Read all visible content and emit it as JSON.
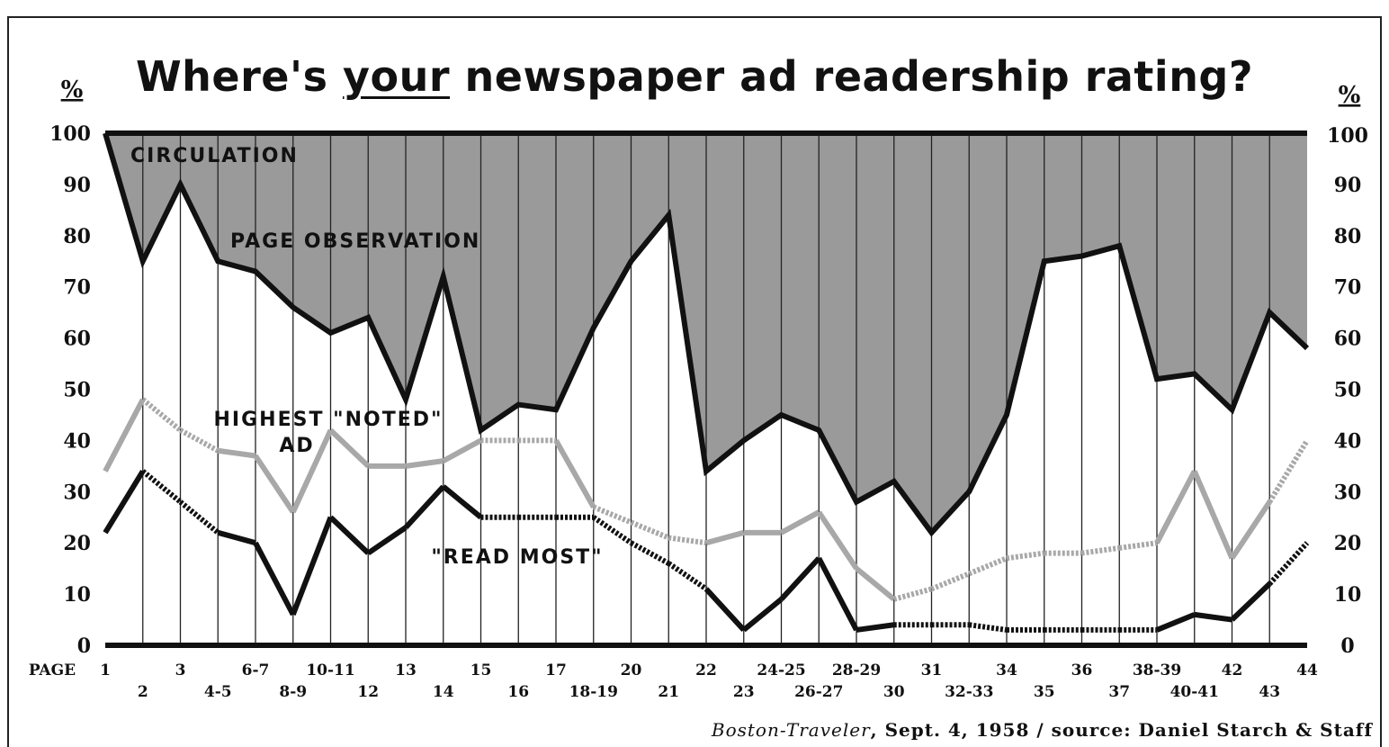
{
  "title": {
    "pre": "Where's ",
    "emph": "your",
    "post": " newspaper ad readership rating?"
  },
  "source": {
    "paper": "Boston-Traveler",
    "rest": ", Sept. 4, 1958 / source: Daniel Starch & Staff"
  },
  "chart_data": {
    "type": "line",
    "title": "Where's your newspaper ad readership rating?",
    "ylabel_left": "%",
    "ylabel_right": "%",
    "ylim": [
      0,
      100
    ],
    "yticks": [
      0,
      10,
      20,
      30,
      40,
      50,
      60,
      70,
      80,
      90,
      100
    ],
    "x_axis_label": "PAGE",
    "pages_top": [
      "1",
      "3",
      "6-7",
      "10-11",
      "13",
      "15",
      "17",
      "20",
      "22",
      "24-25",
      "28-29",
      "31",
      "34",
      "36",
      "38-39",
      "42",
      "44"
    ],
    "pages_bottom": [
      "2",
      "4-5",
      "8-9",
      "12",
      "14",
      "16",
      "18-19",
      "21",
      "23",
      "26-27",
      "30",
      "32-33",
      "35",
      "37",
      "40-41",
      "43"
    ],
    "categories": [
      "1",
      "2",
      "3",
      "4-5",
      "6-7",
      "8-9",
      "10-11",
      "12",
      "13",
      "14",
      "15",
      "16",
      "17",
      "18-19",
      "20",
      "21",
      "22",
      "23",
      "24-25",
      "26-27",
      "28-29",
      "30",
      "31",
      "32-33",
      "34",
      "35",
      "36",
      "37",
      "38-39",
      "40-41",
      "42",
      "43",
      "44"
    ],
    "series": [
      {
        "name": "CIRCULATION",
        "values": [
          100,
          100,
          100,
          100,
          100,
          100,
          100,
          100,
          100,
          100,
          100,
          100,
          100,
          100,
          100,
          100,
          100,
          100,
          100,
          100,
          100,
          100,
          100,
          100,
          100,
          100,
          100,
          100,
          100,
          100,
          100,
          100,
          100
        ]
      },
      {
        "name": "PAGE OBSERVATION",
        "values": [
          100,
          75,
          90,
          75,
          73,
          66,
          61,
          64,
          48,
          72,
          42,
          47,
          46,
          62,
          75,
          84,
          34,
          40,
          45,
          42,
          28,
          32,
          22,
          30,
          45,
          75,
          76,
          78,
          52,
          53,
          46,
          65,
          58
        ]
      },
      {
        "name": "HIGHEST \"NOTED\" AD",
        "values": [
          34,
          48,
          42,
          38,
          37,
          26,
          42,
          35,
          35,
          36,
          40,
          40,
          40,
          27,
          24,
          21,
          20,
          22,
          22,
          26,
          15,
          9,
          11,
          14,
          17,
          18,
          18,
          19,
          20,
          34,
          17,
          28,
          40
        ]
      },
      {
        "name": "\"READ MOST\"",
        "values": [
          22,
          34,
          28,
          22,
          20,
          6,
          25,
          18,
          23,
          31,
          25,
          25,
          25,
          25,
          20,
          16,
          11,
          3,
          9,
          17,
          3,
          4,
          4,
          4,
          3,
          3,
          3,
          3,
          3,
          6,
          5,
          12,
          20
        ]
      }
    ],
    "dotted_segments": {
      "HIGHEST \"NOTED\" AD": [
        [
          1,
          3
        ],
        [
          10,
          12
        ],
        [
          13,
          16
        ],
        [
          21,
          28
        ],
        [
          31,
          32
        ]
      ],
      "\"READ MOST\"": [
        [
          1,
          3
        ],
        [
          10,
          13
        ],
        [
          13,
          16
        ],
        [
          21,
          28
        ],
        [
          31,
          32
        ]
      ]
    },
    "shading": "area above PAGE OBSERVATION up to CIRCULATION shaded gray",
    "colors": {
      "shade": "#9a9a9a",
      "line": "#111111",
      "noted": "#a8a8a8"
    }
  }
}
